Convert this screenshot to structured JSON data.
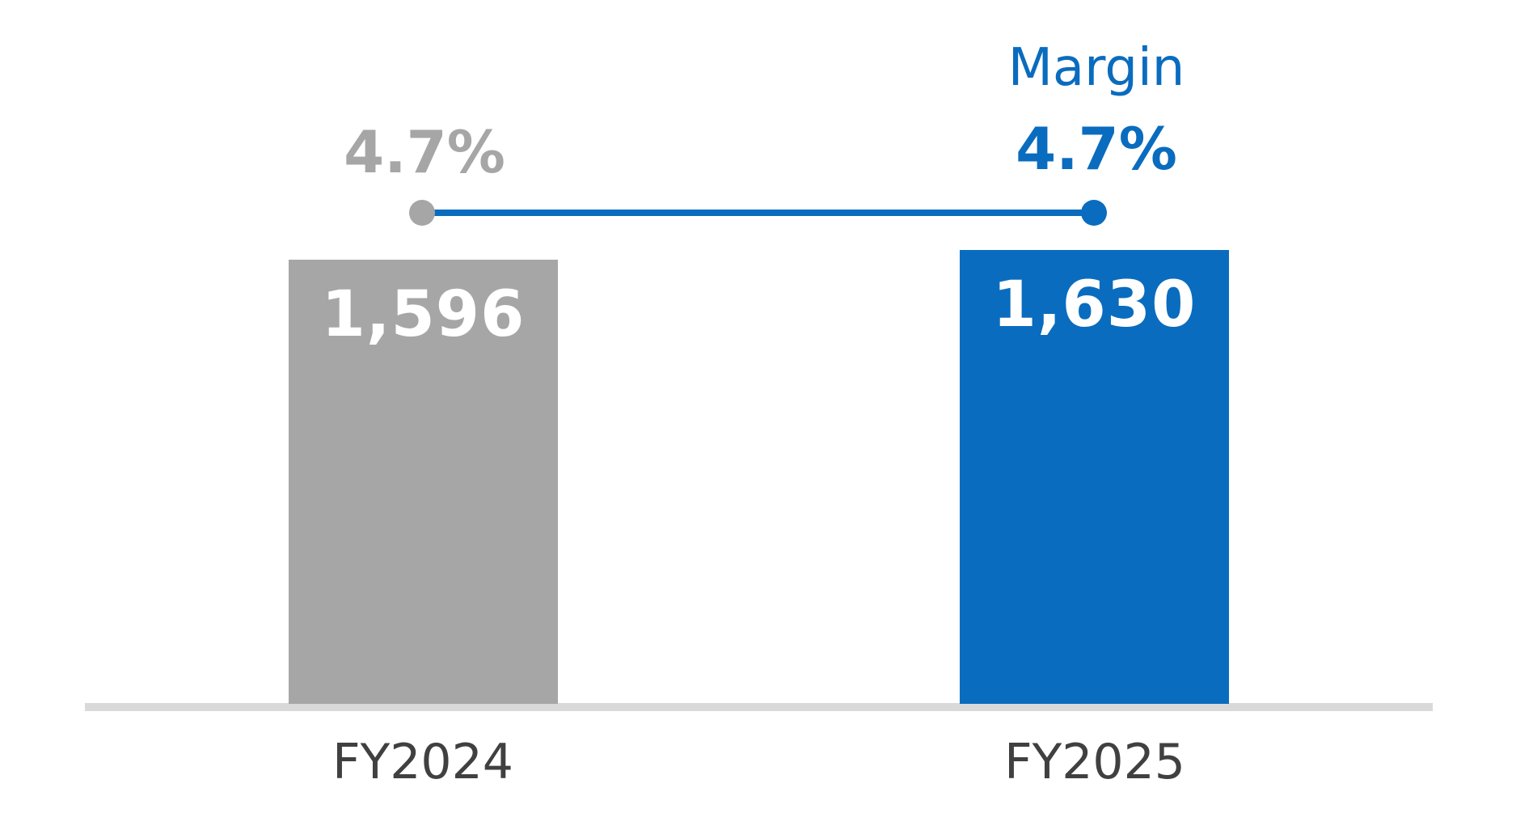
{
  "chart_data": {
    "type": "bar",
    "title": "",
    "categories": [
      "FY2024",
      "FY2025"
    ],
    "series": [
      {
        "name": "value",
        "type": "bar",
        "values": [
          1596,
          1630
        ],
        "labels": [
          "1,596",
          "1,630"
        ],
        "colors": [
          "#a6a6a6",
          "#0a6cbe"
        ]
      },
      {
        "name": "Margin",
        "type": "line",
        "values": [
          4.7,
          4.7
        ],
        "labels": [
          "4.7%",
          "4.7%"
        ],
        "marker_colors": [
          "#a6a6a6",
          "#0a6cbe"
        ],
        "line_color": "#0a6cbe"
      }
    ],
    "ylim": [
      0,
      1700
    ],
    "grid": false,
    "legend_position": "none",
    "annotations": [
      "Margin"
    ]
  },
  "labels": {
    "margin_title": "Margin",
    "margin_pct_fy2024": "4.7%",
    "margin_pct_fy2025": "4.7%",
    "bar_value_fy2024": "1,596",
    "bar_value_fy2025": "1,630",
    "category_fy2024": "FY2024",
    "category_fy2025": "FY2025"
  },
  "colors": {
    "gray": "#a6a6a6",
    "blue": "#0a6cbe",
    "axis": "#d9d9d9",
    "category_text": "#404040",
    "bar_value_text": "#ffffff",
    "background": "#ffffff"
  }
}
